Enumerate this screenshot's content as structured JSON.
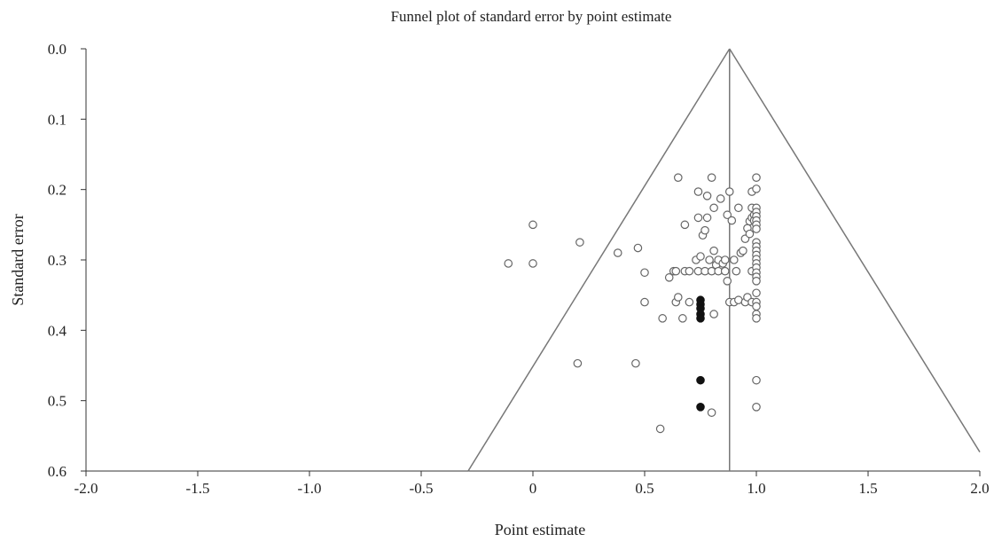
{
  "chart_data": {
    "type": "scatter",
    "title": "Funnel plot of standard error by point estimate",
    "xlabel": "Point estimate",
    "ylabel": "Standard error",
    "xlim": [
      -2.0,
      2.0
    ],
    "ylim": [
      0.0,
      0.6
    ],
    "y_inverted": true,
    "x_ticks": [
      "-2.0",
      "-1.5",
      "-1.0",
      "-0.5",
      "0",
      "0.5",
      "1.0",
      "1.5",
      "2.0"
    ],
    "x_tick_values": [
      -2.0,
      -1.5,
      -1.0,
      -0.5,
      0,
      0.5,
      1.0,
      1.5,
      2.0
    ],
    "y_ticks": [
      "0.0",
      "0.1",
      "0.2",
      "0.3",
      "0.4",
      "0.5",
      "0.6"
    ],
    "y_tick_values": [
      0.0,
      0.1,
      0.2,
      0.3,
      0.4,
      0.5,
      0.6
    ],
    "grid": false,
    "combined_estimate": 0.88,
    "funnel_lines": [
      {
        "from": [
          0.88,
          0.0
        ],
        "to": [
          -0.29,
          0.6
        ]
      },
      {
        "from": [
          0.88,
          0.0
        ],
        "to": [
          2.0,
          0.573
        ]
      }
    ],
    "series": [
      {
        "marker": "open-circle",
        "points": [
          [
            -0.11,
            0.305
          ],
          [
            0.0,
            0.25
          ],
          [
            0.0,
            0.305
          ],
          [
            0.21,
            0.275
          ],
          [
            0.2,
            0.447
          ],
          [
            0.38,
            0.29
          ],
          [
            0.47,
            0.283
          ],
          [
            0.46,
            0.447
          ],
          [
            0.5,
            0.318
          ],
          [
            0.5,
            0.36
          ],
          [
            0.57,
            0.54
          ],
          [
            0.58,
            0.383
          ],
          [
            0.61,
            0.325
          ],
          [
            0.63,
            0.316
          ],
          [
            0.64,
            0.316
          ],
          [
            0.65,
            0.183
          ],
          [
            0.64,
            0.36
          ],
          [
            0.65,
            0.353
          ],
          [
            0.67,
            0.383
          ],
          [
            0.68,
            0.25
          ],
          [
            0.68,
            0.316
          ],
          [
            0.7,
            0.316
          ],
          [
            0.7,
            0.36
          ],
          [
            0.73,
            0.3
          ],
          [
            0.74,
            0.24
          ],
          [
            0.74,
            0.203
          ],
          [
            0.74,
            0.316
          ],
          [
            0.75,
            0.295
          ],
          [
            0.76,
            0.265
          ],
          [
            0.77,
            0.258
          ],
          [
            0.77,
            0.316
          ],
          [
            0.78,
            0.209
          ],
          [
            0.78,
            0.24
          ],
          [
            0.79,
            0.3
          ],
          [
            0.8,
            0.183
          ],
          [
            0.8,
            0.316
          ],
          [
            0.81,
            0.226
          ],
          [
            0.81,
            0.287
          ],
          [
            0.81,
            0.377
          ],
          [
            0.8,
            0.517
          ],
          [
            0.82,
            0.307
          ],
          [
            0.83,
            0.3
          ],
          [
            0.83,
            0.316
          ],
          [
            0.84,
            0.213
          ],
          [
            0.85,
            0.305
          ],
          [
            0.86,
            0.316
          ],
          [
            0.86,
            0.3
          ],
          [
            0.87,
            0.236
          ],
          [
            0.87,
            0.33
          ],
          [
            0.88,
            0.203
          ],
          [
            0.88,
            0.36
          ],
          [
            0.89,
            0.244
          ],
          [
            0.9,
            0.3
          ],
          [
            0.9,
            0.36
          ],
          [
            0.91,
            0.316
          ],
          [
            0.92,
            0.226
          ],
          [
            0.92,
            0.357
          ],
          [
            0.93,
            0.29
          ],
          [
            0.94,
            0.287
          ],
          [
            0.95,
            0.36
          ],
          [
            0.95,
            0.27
          ],
          [
            0.96,
            0.255
          ],
          [
            0.96,
            0.353
          ],
          [
            0.97,
            0.245
          ],
          [
            0.97,
            0.263
          ],
          [
            0.98,
            0.24
          ],
          [
            0.98,
            0.316
          ],
          [
            0.98,
            0.226
          ],
          [
            0.98,
            0.203
          ],
          [
            0.98,
            0.36
          ],
          [
            0.99,
            0.236
          ],
          [
            0.99,
            0.244
          ],
          [
            1.0,
            0.183
          ],
          [
            1.0,
            0.199
          ],
          [
            1.0,
            0.226
          ],
          [
            1.0,
            0.232
          ],
          [
            1.0,
            0.238
          ],
          [
            1.0,
            0.244
          ],
          [
            1.0,
            0.25
          ],
          [
            1.0,
            0.256
          ],
          [
            1.0,
            0.275
          ],
          [
            1.0,
            0.281
          ],
          [
            1.0,
            0.287
          ],
          [
            1.0,
            0.293
          ],
          [
            1.0,
            0.299
          ],
          [
            1.0,
            0.305
          ],
          [
            1.0,
            0.311
          ],
          [
            1.0,
            0.318
          ],
          [
            1.0,
            0.324
          ],
          [
            1.0,
            0.33
          ],
          [
            1.0,
            0.347
          ],
          [
            1.0,
            0.36
          ],
          [
            1.0,
            0.366
          ],
          [
            1.0,
            0.377
          ],
          [
            1.0,
            0.383
          ],
          [
            1.0,
            0.471
          ],
          [
            1.0,
            0.509
          ]
        ]
      },
      {
        "marker": "filled-circle",
        "points": [
          [
            0.75,
            0.357
          ],
          [
            0.75,
            0.363
          ],
          [
            0.75,
            0.369
          ],
          [
            0.75,
            0.377
          ],
          [
            0.75,
            0.383
          ],
          [
            0.75,
            0.471
          ],
          [
            0.75,
            0.509
          ]
        ]
      }
    ]
  }
}
